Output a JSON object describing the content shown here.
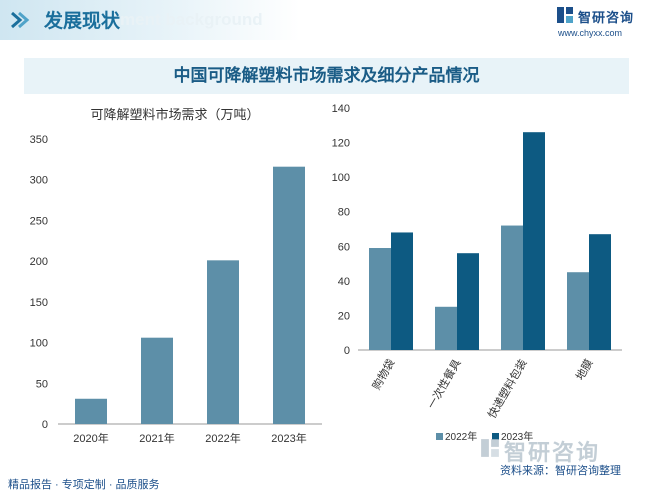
{
  "header": {
    "section_title": "发展现状",
    "ghost_text": "ment background",
    "logo_name": "智研咨询",
    "logo_url": "www.chyxx.com"
  },
  "main_title": "中国可降解塑料市场需求及细分产品情况",
  "footer": {
    "left": "精品报告 · 专项定制 · 品质服务",
    "source": "资料来源：智研咨询整理",
    "logo_name": "智研咨询"
  },
  "colors": {
    "bar_2022": "#5d8fa8",
    "bar_2023": "#0d5a82",
    "title_blue": "#1a5c86"
  },
  "chart_data": [
    {
      "type": "bar",
      "title": "可降解塑料市场需求（万吨）",
      "categories": [
        "2020年",
        "2021年",
        "2022年",
        "2023年"
      ],
      "values": [
        31,
        106,
        201,
        316
      ],
      "ylim": [
        0,
        350
      ],
      "yticks": [
        0,
        50,
        100,
        150,
        200,
        250,
        300,
        350
      ],
      "grid": false
    },
    {
      "type": "bar",
      "categories": [
        "购物袋",
        "一次性餐具",
        "快递塑料包装",
        "地膜"
      ],
      "series": [
        {
          "name": "2022年",
          "values": [
            59,
            25,
            72,
            45
          ]
        },
        {
          "name": "2023年",
          "values": [
            68,
            56,
            126,
            67
          ]
        }
      ],
      "ylim": [
        0,
        140
      ],
      "yticks": [
        0,
        20,
        40,
        60,
        80,
        100,
        120,
        140
      ],
      "legend": "bottom",
      "grid": false
    }
  ]
}
